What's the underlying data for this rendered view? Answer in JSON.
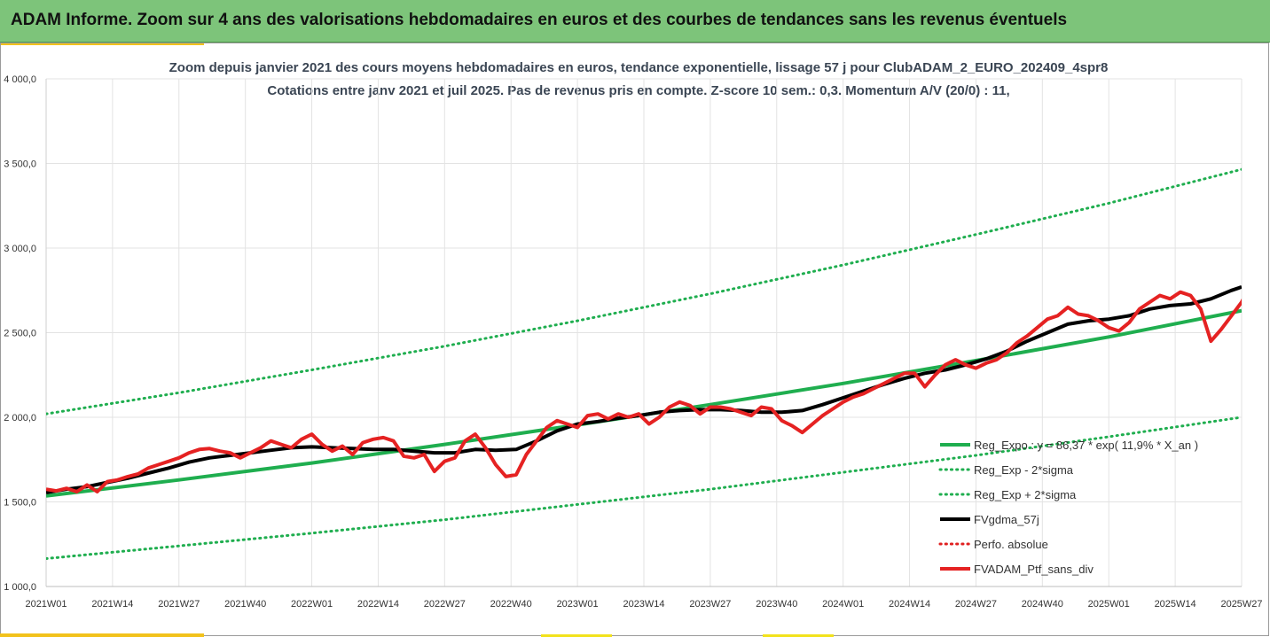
{
  "header": {
    "title": "ADAM Informe. Zoom sur 4 ans des valorisations hebdomadaires en euros et des courbes de tendances sans les revenus éventuels"
  },
  "colors": {
    "header_bg": "#7dc47a",
    "trend": "#1fae4f",
    "band": "#1fae4f",
    "moving_avg": "#000000",
    "perf": "#e02020",
    "portfolio": "#e52222",
    "grid": "#e3e3e3"
  },
  "chart_data": {
    "type": "line",
    "title": "Zoom depuis janvier 2021 des cours moyens hebdomadaires  en euros, tendance exponentielle, lissage 57 j pour ClubADAM_2_EURO_202409_4spr8",
    "subtitle": "Cotations  entre janv 2021 et juil 2025. Pas de revenus pris en compte. Z-score 10 sem.: 0,3. Momentum  A/V (20/0) : 11,",
    "ylim": [
      1000,
      4000
    ],
    "x_range": [
      0,
      234
    ],
    "y_ticks": [
      "1 000,0",
      "1 500,0",
      "2 000,0",
      "2 500,0",
      "3 000,0",
      "3 500,0",
      "4 000,0"
    ],
    "x_ticks": [
      {
        "label": "2021W01",
        "x": 0
      },
      {
        "label": "2021W14",
        "x": 13
      },
      {
        "label": "2021W27",
        "x": 26
      },
      {
        "label": "2021W40",
        "x": 39
      },
      {
        "label": "2022W01",
        "x": 52
      },
      {
        "label": "2022W14",
        "x": 65
      },
      {
        "label": "2022W27",
        "x": 78
      },
      {
        "label": "2022W40",
        "x": 91
      },
      {
        "label": "2023W01",
        "x": 104
      },
      {
        "label": "2023W14",
        "x": 117
      },
      {
        "label": "2023W27",
        "x": 130
      },
      {
        "label": "2023W40",
        "x": 143
      },
      {
        "label": "2024W01",
        "x": 156
      },
      {
        "label": "2024W14",
        "x": 169
      },
      {
        "label": "2024W27",
        "x": 182
      },
      {
        "label": "2024W40",
        "x": 195
      },
      {
        "label": "2025W01",
        "x": 208
      },
      {
        "label": "2025W14",
        "x": 221
      },
      {
        "label": "2025W27",
        "x": 234
      }
    ],
    "grid": true,
    "legend_position": "bottom-right",
    "series": [
      {
        "name": "Reg_Expo : y = 86,37 * exp( 11,9% *  X_an )",
        "style": "solid",
        "width": 4,
        "color": "#1fae4f",
        "points": [
          [
            0,
            1535
          ],
          [
            26,
            1630
          ],
          [
            52,
            1730
          ],
          [
            78,
            1840
          ],
          [
            104,
            1955
          ],
          [
            130,
            2075
          ],
          [
            156,
            2200
          ],
          [
            182,
            2335
          ],
          [
            208,
            2475
          ],
          [
            234,
            2630
          ]
        ]
      },
      {
        "name": "Reg_Exp - 2*sigma",
        "style": "dotted",
        "width": 3,
        "color": "#1fae4f",
        "points": [
          [
            0,
            1165
          ],
          [
            26,
            1240
          ],
          [
            52,
            1315
          ],
          [
            78,
            1395
          ],
          [
            104,
            1485
          ],
          [
            130,
            1575
          ],
          [
            156,
            1675
          ],
          [
            182,
            1775
          ],
          [
            208,
            1885
          ],
          [
            234,
            2000
          ]
        ]
      },
      {
        "name": "Reg_Exp + 2*sigma",
        "style": "dotted",
        "width": 3,
        "color": "#1fae4f",
        "points": [
          [
            0,
            2020
          ],
          [
            26,
            2145
          ],
          [
            52,
            2280
          ],
          [
            78,
            2420
          ],
          [
            104,
            2570
          ],
          [
            130,
            2730
          ],
          [
            156,
            2900
          ],
          [
            182,
            3080
          ],
          [
            208,
            3265
          ],
          [
            234,
            3465
          ]
        ]
      },
      {
        "name": "FVgdma_57j",
        "style": "solid",
        "width": 4,
        "color": "#000000",
        "points": [
          [
            0,
            1555
          ],
          [
            4,
            1575
          ],
          [
            8,
            1590
          ],
          [
            12,
            1615
          ],
          [
            16,
            1640
          ],
          [
            20,
            1670
          ],
          [
            24,
            1700
          ],
          [
            28,
            1735
          ],
          [
            32,
            1760
          ],
          [
            36,
            1775
          ],
          [
            40,
            1790
          ],
          [
            44,
            1805
          ],
          [
            48,
            1820
          ],
          [
            52,
            1825
          ],
          [
            56,
            1820
          ],
          [
            60,
            1815
          ],
          [
            64,
            1810
          ],
          [
            68,
            1810
          ],
          [
            72,
            1800
          ],
          [
            76,
            1790
          ],
          [
            80,
            1790
          ],
          [
            84,
            1810
          ],
          [
            88,
            1805
          ],
          [
            92,
            1810
          ],
          [
            96,
            1860
          ],
          [
            100,
            1920
          ],
          [
            104,
            1960
          ],
          [
            108,
            1975
          ],
          [
            112,
            1995
          ],
          [
            116,
            2010
          ],
          [
            120,
            2030
          ],
          [
            124,
            2040
          ],
          [
            128,
            2045
          ],
          [
            132,
            2045
          ],
          [
            136,
            2040
          ],
          [
            140,
            2030
          ],
          [
            144,
            2030
          ],
          [
            148,
            2040
          ],
          [
            152,
            2075
          ],
          [
            156,
            2115
          ],
          [
            160,
            2155
          ],
          [
            164,
            2195
          ],
          [
            168,
            2230
          ],
          [
            172,
            2260
          ],
          [
            176,
            2280
          ],
          [
            180,
            2310
          ],
          [
            184,
            2345
          ],
          [
            188,
            2390
          ],
          [
            192,
            2450
          ],
          [
            196,
            2500
          ],
          [
            200,
            2550
          ],
          [
            204,
            2570
          ],
          [
            208,
            2580
          ],
          [
            212,
            2600
          ],
          [
            216,
            2640
          ],
          [
            220,
            2660
          ],
          [
            224,
            2670
          ],
          [
            228,
            2700
          ],
          [
            232,
            2750
          ],
          [
            234,
            2770
          ]
        ]
      },
      {
        "name": "Perfo. absolue",
        "style": "dotted",
        "width": 3,
        "color": "#e02020",
        "points": []
      },
      {
        "name": "FVADAM_Ptf_sans_div",
        "style": "solid",
        "width": 4,
        "color": "#e52222",
        "points": [
          [
            0,
            1575
          ],
          [
            2,
            1565
          ],
          [
            4,
            1580
          ],
          [
            6,
            1560
          ],
          [
            8,
            1600
          ],
          [
            10,
            1560
          ],
          [
            12,
            1620
          ],
          [
            14,
            1630
          ],
          [
            16,
            1650
          ],
          [
            18,
            1665
          ],
          [
            20,
            1700
          ],
          [
            22,
            1720
          ],
          [
            24,
            1740
          ],
          [
            26,
            1760
          ],
          [
            28,
            1790
          ],
          [
            30,
            1810
          ],
          [
            32,
            1815
          ],
          [
            34,
            1800
          ],
          [
            36,
            1790
          ],
          [
            38,
            1760
          ],
          [
            40,
            1790
          ],
          [
            42,
            1820
          ],
          [
            44,
            1860
          ],
          [
            46,
            1840
          ],
          [
            48,
            1820
          ],
          [
            50,
            1870
          ],
          [
            52,
            1900
          ],
          [
            54,
            1840
          ],
          [
            56,
            1800
          ],
          [
            58,
            1830
          ],
          [
            60,
            1780
          ],
          [
            62,
            1850
          ],
          [
            64,
            1870
          ],
          [
            66,
            1880
          ],
          [
            68,
            1860
          ],
          [
            70,
            1770
          ],
          [
            72,
            1760
          ],
          [
            74,
            1780
          ],
          [
            76,
            1680
          ],
          [
            78,
            1740
          ],
          [
            80,
            1760
          ],
          [
            82,
            1860
          ],
          [
            84,
            1900
          ],
          [
            86,
            1820
          ],
          [
            88,
            1720
          ],
          [
            90,
            1650
          ],
          [
            92,
            1660
          ],
          [
            94,
            1780
          ],
          [
            96,
            1860
          ],
          [
            98,
            1940
          ],
          [
            100,
            1980
          ],
          [
            102,
            1960
          ],
          [
            104,
            1940
          ],
          [
            106,
            2010
          ],
          [
            108,
            2020
          ],
          [
            110,
            1990
          ],
          [
            112,
            2020
          ],
          [
            114,
            2000
          ],
          [
            116,
            2020
          ],
          [
            118,
            1960
          ],
          [
            120,
            2000
          ],
          [
            122,
            2060
          ],
          [
            124,
            2090
          ],
          [
            126,
            2070
          ],
          [
            128,
            2020
          ],
          [
            130,
            2060
          ],
          [
            132,
            2060
          ],
          [
            134,
            2050
          ],
          [
            136,
            2030
          ],
          [
            138,
            2010
          ],
          [
            140,
            2060
          ],
          [
            142,
            2050
          ],
          [
            144,
            1980
          ],
          [
            146,
            1950
          ],
          [
            148,
            1910
          ],
          [
            150,
            1960
          ],
          [
            152,
            2010
          ],
          [
            154,
            2050
          ],
          [
            156,
            2090
          ],
          [
            158,
            2120
          ],
          [
            160,
            2140
          ],
          [
            162,
            2170
          ],
          [
            164,
            2200
          ],
          [
            166,
            2230
          ],
          [
            168,
            2260
          ],
          [
            170,
            2260
          ],
          [
            172,
            2180
          ],
          [
            174,
            2250
          ],
          [
            176,
            2310
          ],
          [
            178,
            2340
          ],
          [
            180,
            2310
          ],
          [
            182,
            2290
          ],
          [
            184,
            2320
          ],
          [
            186,
            2340
          ],
          [
            188,
            2380
          ],
          [
            190,
            2440
          ],
          [
            192,
            2480
          ],
          [
            194,
            2530
          ],
          [
            196,
            2580
          ],
          [
            198,
            2600
          ],
          [
            200,
            2650
          ],
          [
            202,
            2610
          ],
          [
            204,
            2600
          ],
          [
            206,
            2570
          ],
          [
            208,
            2530
          ],
          [
            210,
            2510
          ],
          [
            212,
            2560
          ],
          [
            214,
            2640
          ],
          [
            216,
            2680
          ],
          [
            218,
            2720
          ],
          [
            220,
            2700
          ],
          [
            222,
            2740
          ],
          [
            224,
            2720
          ],
          [
            226,
            2640
          ],
          [
            228,
            2450
          ],
          [
            230,
            2520
          ],
          [
            232,
            2600
          ],
          [
            234,
            2680
          ],
          [
            236,
            2790
          ],
          [
            238,
            2830
          ],
          [
            240,
            2800
          ],
          [
            242,
            2790
          ]
        ]
      }
    ]
  }
}
